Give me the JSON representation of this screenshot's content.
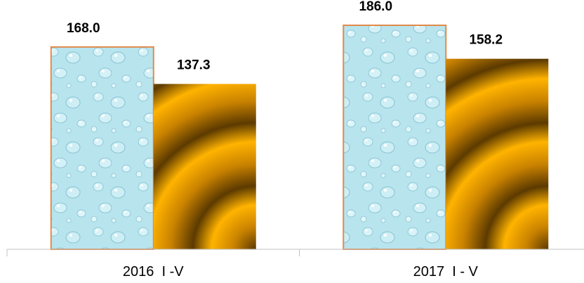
{
  "chart_data": {
    "type": "bar",
    "categories": [
      "2016  I -V",
      "2017  I - V"
    ],
    "series": [
      {
        "values": [
          168.0,
          186.0
        ],
        "value_labels": [
          "168.0",
          "186.0"
        ],
        "fill": "water-drops-texture",
        "color": "#a9dde8",
        "border": "#e08a4a"
      },
      {
        "values": [
          137.3,
          158.2
        ],
        "value_labels": [
          "137.3",
          "158.2"
        ],
        "fill": "gold-radial-rings",
        "color": "#f0a000"
      }
    ],
    "ylim": [
      0,
      200
    ],
    "grid": false,
    "legend": "none"
  }
}
